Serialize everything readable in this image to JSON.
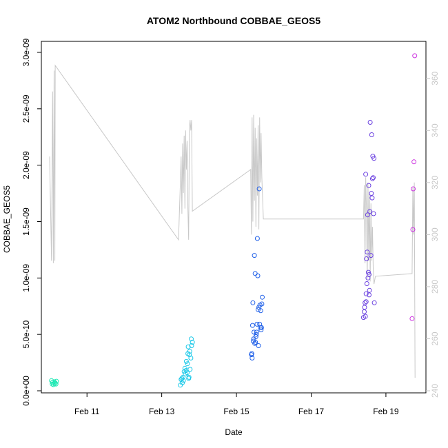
{
  "chart_data": {
    "type": "scatter",
    "title": "ATOM2 Northbound COBBAE_GEOS5",
    "xlabel": "Date",
    "ylabel": "COBBAE_GEOS5",
    "x_ticks": [
      "Feb 11",
      "Feb 13",
      "Feb 15",
      "Feb 17",
      "Feb 19"
    ],
    "x_tick_positions": [
      11,
      13,
      15,
      17,
      19
    ],
    "xlim": [
      10.0,
      19.85
    ],
    "y_ticks": [
      "0.0e+00",
      "5.0e-10",
      "1.0e-09",
      "1.5e-09",
      "2.0e-09",
      "2.5e-09",
      "3.0e-09"
    ],
    "y_tick_values": [
      0,
      5e-10,
      1e-09,
      1.5e-09,
      2e-09,
      2.5e-09,
      3e-09
    ],
    "ylim": [
      0,
      3e-09
    ],
    "y2_ticks": [
      "240",
      "260",
      "280",
      "300",
      "320",
      "340",
      "360"
    ],
    "y2_tick_values": [
      240,
      260,
      280,
      300,
      320,
      340,
      360
    ],
    "y2lim": [
      240,
      370
    ],
    "grid": false,
    "line_color": "#c8c8c8",
    "series": [
      {
        "color": "#1ee8b4",
        "points": [
          [
            10.05,
            9e-11
          ],
          [
            10.07,
            6e-11
          ],
          [
            10.08,
            7.5e-11
          ],
          [
            10.1,
            5.5e-11
          ],
          [
            10.12,
            8e-11
          ],
          [
            10.14,
            6.5e-11
          ],
          [
            10.15,
            7e-11
          ],
          [
            10.17,
            6e-11
          ],
          [
            10.18,
            8.5e-11
          ]
        ]
      },
      {
        "color": "#18c8e8",
        "points": [
          [
            13.5,
            5e-11
          ],
          [
            13.52,
            1e-10
          ],
          [
            13.54,
            1.1e-10
          ],
          [
            13.55,
            7e-11
          ],
          [
            13.57,
            1.2e-10
          ],
          [
            13.58,
            9e-11
          ],
          [
            13.6,
            1.7e-10
          ],
          [
            13.62,
            2e-10
          ],
          [
            13.63,
            1.5e-10
          ],
          [
            13.65,
            1.8e-10
          ],
          [
            13.66,
            2.6e-10
          ],
          [
            13.68,
            1.6e-10
          ],
          [
            13.7,
            3.3e-10
          ],
          [
            13.71,
            3.9e-10
          ],
          [
            13.72,
            1.1e-10
          ],
          [
            13.74,
            3.2e-10
          ],
          [
            13.75,
            3.5e-10
          ],
          [
            13.76,
            1.9e-10
          ],
          [
            13.78,
            2.9e-10
          ],
          [
            13.79,
            4.6e-10
          ],
          [
            13.8,
            4e-10
          ],
          [
            13.82,
            4.3e-10
          ],
          [
            13.69,
            2.4e-10
          ],
          [
            13.73,
            1.2e-10
          ]
        ]
      },
      {
        "color": "#2060e8",
        "points": [
          [
            15.4,
            3.2e-10
          ],
          [
            15.42,
            2.9e-10
          ],
          [
            15.43,
            5.8e-10
          ],
          [
            15.44,
            7.8e-10
          ],
          [
            15.45,
            4.4e-10
          ],
          [
            15.47,
            5.2e-10
          ],
          [
            15.48,
            1.2e-09
          ],
          [
            15.49,
            4.2e-10
          ],
          [
            15.5,
            1.04e-09
          ],
          [
            15.51,
            4.3e-10
          ],
          [
            15.52,
            4.8e-10
          ],
          [
            15.53,
            5e-10
          ],
          [
            15.54,
            5.2e-10
          ],
          [
            15.55,
            5.9e-10
          ],
          [
            15.56,
            1.35e-09
          ],
          [
            15.57,
            1.02e-09
          ],
          [
            15.58,
            7.2e-10
          ],
          [
            15.59,
            4e-10
          ],
          [
            15.6,
            7.4e-10
          ],
          [
            15.61,
            1.79e-09
          ],
          [
            15.62,
            5.9e-10
          ],
          [
            15.63,
            7.6e-10
          ],
          [
            15.64,
            5.6e-10
          ],
          [
            15.65,
            7.1e-10
          ],
          [
            15.66,
            5.4e-10
          ],
          [
            15.67,
            5.6e-10
          ],
          [
            15.68,
            7.7e-10
          ],
          [
            15.69,
            8.3e-10
          ],
          [
            15.46,
            4.6e-10
          ],
          [
            15.41,
            3.3e-10
          ]
        ]
      },
      {
        "color": "#6a40e0",
        "points": [
          [
            18.4,
            6.5e-10
          ],
          [
            18.42,
            7e-10
          ],
          [
            18.43,
            7.4e-10
          ],
          [
            18.44,
            7.8e-10
          ],
          [
            18.45,
            6.6e-10
          ],
          [
            18.46,
            1.92e-09
          ],
          [
            18.47,
            7.9e-10
          ],
          [
            18.48,
            1.17e-09
          ],
          [
            18.49,
            9.5e-10
          ],
          [
            18.5,
            1.23e-09
          ],
          [
            18.51,
            1.56e-09
          ],
          [
            18.52,
            1e-09
          ],
          [
            18.53,
            1.05e-09
          ],
          [
            18.54,
            1.82e-09
          ],
          [
            18.55,
            1.03e-09
          ],
          [
            18.56,
            8.9e-10
          ],
          [
            18.57,
            1.59e-09
          ],
          [
            18.58,
            2.38e-09
          ],
          [
            18.6,
            1.2e-09
          ],
          [
            18.61,
            1.75e-09
          ],
          [
            18.62,
            2.27e-09
          ],
          [
            18.63,
            1.71e-09
          ],
          [
            18.64,
            1.88e-09
          ],
          [
            18.65,
            2.08e-09
          ],
          [
            18.66,
            1.89e-09
          ],
          [
            18.67,
            1.57e-09
          ],
          [
            18.68,
            2.06e-09
          ],
          [
            18.69,
            7.8e-10
          ],
          [
            18.47,
            8.6e-10
          ],
          [
            18.55,
            8.5e-10
          ]
        ]
      },
      {
        "color": "#cc30e0",
        "points": [
          [
            19.7,
            6.4e-10
          ],
          [
            19.72,
            1.43e-09
          ],
          [
            19.73,
            1.79e-09
          ],
          [
            19.75,
            2.03e-09
          ],
          [
            19.77,
            2.97e-09
          ]
        ]
      }
    ],
    "line_series_y2": [
      [
        10.0,
        330
      ],
      [
        10.05,
        290
      ],
      [
        10.08,
        355
      ],
      [
        10.1,
        289
      ],
      [
        10.12,
        363
      ],
      [
        10.14,
        290
      ],
      [
        10.15,
        365
      ],
      [
        13.45,
        298
      ],
      [
        13.5,
        320
      ],
      [
        13.52,
        330
      ],
      [
        13.54,
        308
      ],
      [
        13.56,
        335
      ],
      [
        13.58,
        316
      ],
      [
        13.6,
        338
      ],
      [
        13.62,
        310
      ],
      [
        13.64,
        340
      ],
      [
        13.66,
        325
      ],
      [
        13.68,
        336
      ],
      [
        13.7,
        310
      ],
      [
        13.72,
        298
      ],
      [
        13.74,
        341
      ],
      [
        13.76,
        344
      ],
      [
        13.78,
        340
      ],
      [
        13.8,
        344
      ],
      [
        13.82,
        309
      ],
      [
        15.38,
        325
      ],
      [
        15.4,
        300
      ],
      [
        15.42,
        345
      ],
      [
        15.44,
        305
      ],
      [
        15.46,
        346
      ],
      [
        15.48,
        313
      ],
      [
        15.5,
        341
      ],
      [
        15.52,
        303
      ],
      [
        15.54,
        337
      ],
      [
        15.56,
        315
      ],
      [
        15.58,
        342
      ],
      [
        15.6,
        302
      ],
      [
        15.62,
        345
      ],
      [
        15.64,
        320
      ],
      [
        15.66,
        339
      ],
      [
        15.68,
        322
      ],
      [
        15.72,
        306
      ],
      [
        18.4,
        306
      ],
      [
        18.42,
        319
      ],
      [
        18.44,
        289
      ],
      [
        18.46,
        322
      ],
      [
        18.48,
        310
      ],
      [
        18.5,
        283
      ],
      [
        18.52,
        320
      ],
      [
        18.54,
        290
      ],
      [
        18.56,
        316
      ],
      [
        18.58,
        282
      ],
      [
        18.6,
        312
      ],
      [
        18.62,
        290
      ],
      [
        18.64,
        303
      ],
      [
        18.66,
        287
      ],
      [
        18.68,
        281
      ],
      [
        18.72,
        284
      ],
      [
        19.7,
        285
      ],
      [
        19.72,
        318
      ],
      [
        19.74,
        300
      ],
      [
        19.76,
        320
      ],
      [
        19.78,
        245
      ]
    ]
  }
}
